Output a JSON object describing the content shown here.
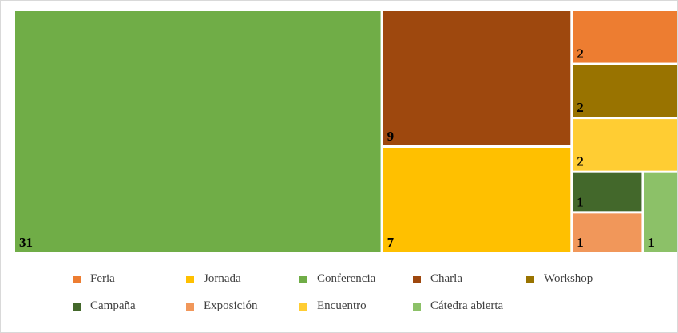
{
  "chart_data": {
    "type": "treemap",
    "title": "",
    "series": [
      {
        "name": "Feria",
        "value": 2,
        "color": "#ED7D31"
      },
      {
        "name": "Jornada",
        "value": 7,
        "color": "#FFC000"
      },
      {
        "name": "Conferencia",
        "value": 31,
        "color": "#70AD47"
      },
      {
        "name": "Charla",
        "value": 9,
        "color": "#9E480E"
      },
      {
        "name": "Workshop",
        "value": 2,
        "color": "#997300"
      },
      {
        "name": "Campaña",
        "value": 1,
        "color": "#43682B"
      },
      {
        "name": "Exposición",
        "value": 1,
        "color": "#F1975A"
      },
      {
        "name": "Encuentro",
        "value": 2,
        "color": "#FFCD33"
      },
      {
        "name": "Cátedra abierta",
        "value": 1,
        "color": "#8CC168"
      }
    ],
    "legend": {
      "position": "bottom"
    },
    "data_labels": {
      "show": true,
      "position": "bottom-left"
    }
  }
}
